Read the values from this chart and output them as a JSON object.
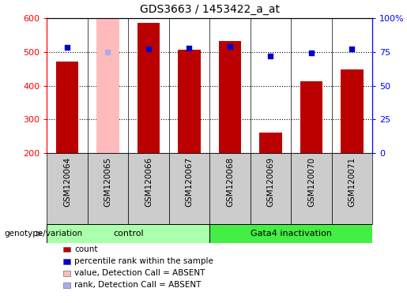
{
  "title": "GDS3663 / 1453422_a_at",
  "samples": [
    "GSM120064",
    "GSM120065",
    "GSM120066",
    "GSM120067",
    "GSM120068",
    "GSM120069",
    "GSM120070",
    "GSM120071"
  ],
  "bar_values": [
    472,
    600,
    587,
    507,
    533,
    260,
    414,
    447
  ],
  "bar_colors": [
    "#bb0000",
    "#ffbbbb",
    "#bb0000",
    "#bb0000",
    "#bb0000",
    "#bb0000",
    "#bb0000",
    "#bb0000"
  ],
  "dot_values": [
    513,
    500,
    508,
    512,
    516,
    487,
    497,
    508
  ],
  "dot_colors": [
    "#0000cc",
    "#aaaaee",
    "#0000cc",
    "#0000cc",
    "#0000cc",
    "#0000cc",
    "#0000cc",
    "#0000cc"
  ],
  "ymin": 200,
  "ymax": 600,
  "yticks": [
    200,
    300,
    400,
    500,
    600
  ],
  "y2ticks": [
    0,
    25,
    50,
    75,
    100
  ],
  "groups": [
    {
      "label": "control",
      "start": 0,
      "end": 3,
      "color": "#aaffaa"
    },
    {
      "label": "Gata4 inactivation",
      "start": 4,
      "end": 7,
      "color": "#44ee44"
    }
  ],
  "genotype_label": "genotype/variation",
  "legend_items": [
    {
      "label": "count",
      "color": "#bb0000"
    },
    {
      "label": "percentile rank within the sample",
      "color": "#0000cc"
    },
    {
      "label": "value, Detection Call = ABSENT",
      "color": "#ffbbbb"
    },
    {
      "label": "rank, Detection Call = ABSENT",
      "color": "#aaaaee"
    }
  ],
  "bar_width": 0.55,
  "dot_size": 25,
  "label_box_color": "#cccccc",
  "grid_color": "#000000",
  "fig_width": 5.15,
  "fig_height": 3.84,
  "dpi": 100
}
